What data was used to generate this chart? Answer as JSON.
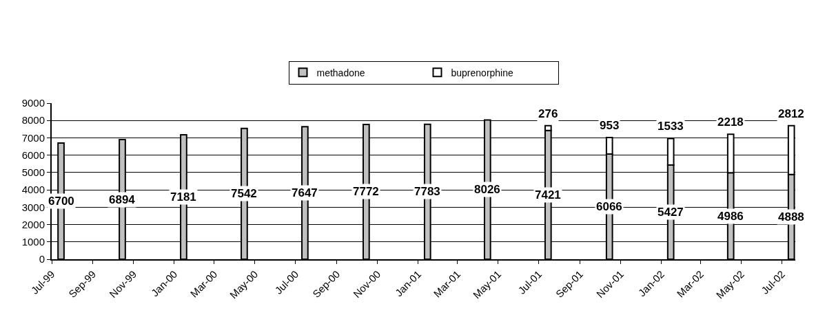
{
  "chart_data": {
    "type": "bar",
    "stacked": true,
    "x": [
      "1999-07-15",
      "1999-10-15",
      "2000-01-15",
      "2000-04-15",
      "2000-07-15",
      "2000-10-15",
      "2001-01-15",
      "2001-04-15",
      "2001-07-15",
      "2001-10-15",
      "2002-01-15",
      "2002-04-15",
      "2002-07-15"
    ],
    "series": [
      {
        "name": "methadone",
        "color": "#c0c0c0",
        "values": [
          6700,
          6894,
          7181,
          7542,
          7647,
          7772,
          7783,
          8026,
          7421,
          6066,
          5427,
          4986,
          4888
        ]
      },
      {
        "name": "buprenorphine",
        "color": "#ffffff",
        "values": [
          null,
          null,
          null,
          null,
          null,
          null,
          null,
          null,
          276,
          953,
          1533,
          2218,
          2812
        ]
      }
    ],
    "xlim": [
      "1999-07-01",
      "2002-07-21"
    ],
    "xticks": [
      {
        "value": "1999-07-01",
        "label": "Jul-99"
      },
      {
        "value": "1999-09-01",
        "label": "Sep-99"
      },
      {
        "value": "1999-11-01",
        "label": "Nov-99"
      },
      {
        "value": "2000-01-01",
        "label": "Jan-00"
      },
      {
        "value": "2000-03-01",
        "label": "Mar-00"
      },
      {
        "value": "2000-05-01",
        "label": "May-00"
      },
      {
        "value": "2000-07-01",
        "label": "Jul-00"
      },
      {
        "value": "2000-09-01",
        "label": "Sep-00"
      },
      {
        "value": "2000-11-01",
        "label": "Nov-00"
      },
      {
        "value": "2001-01-01",
        "label": "Jan-01"
      },
      {
        "value": "2001-03-01",
        "label": "Mar-01"
      },
      {
        "value": "2001-05-01",
        "label": "May-01"
      },
      {
        "value": "2001-07-01",
        "label": "Jul-01"
      },
      {
        "value": "2001-09-01",
        "label": "Sep-01"
      },
      {
        "value": "2001-11-01",
        "label": "Nov-01"
      },
      {
        "value": "2002-01-01",
        "label": "Jan-02"
      },
      {
        "value": "2002-03-01",
        "label": "Mar-02"
      },
      {
        "value": "2002-05-01",
        "label": "May-02"
      },
      {
        "value": "2002-07-01",
        "label": "Jul-02"
      }
    ],
    "ylim": [
      0,
      9000
    ],
    "yticks": [
      0,
      1000,
      2000,
      3000,
      4000,
      5000,
      6000,
      7000,
      8000,
      9000
    ],
    "grid": "y",
    "legend": "top",
    "data_labels": true
  }
}
